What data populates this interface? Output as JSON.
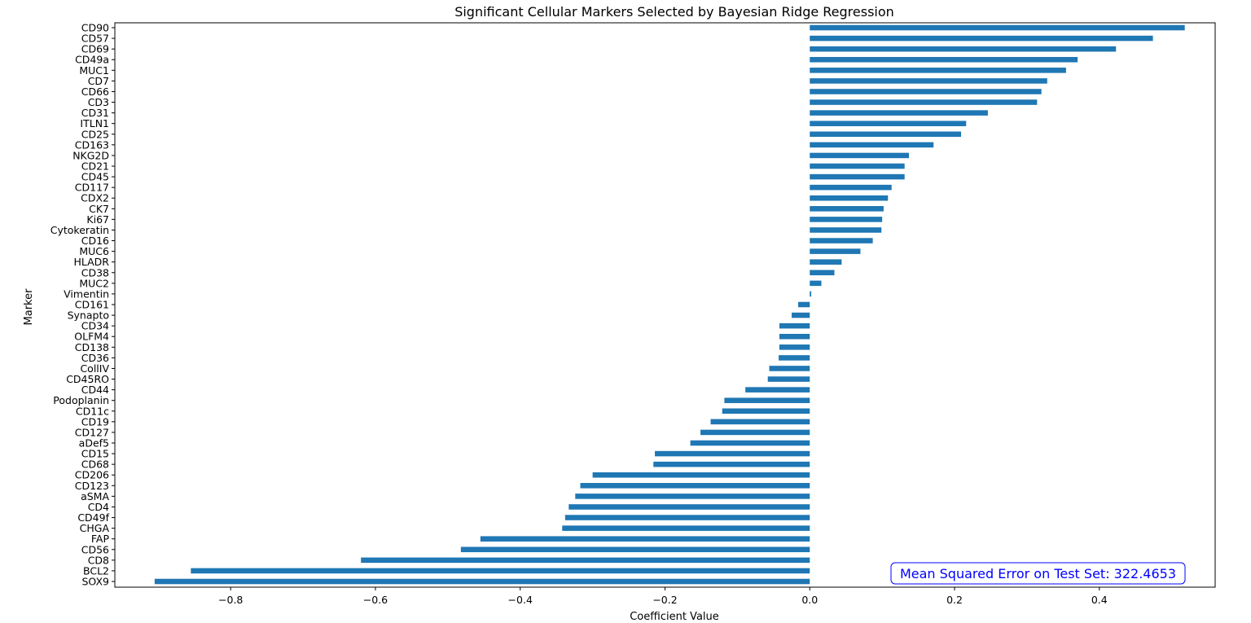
{
  "chart_data": {
    "type": "bar",
    "orientation": "horizontal",
    "title": "Significant Cellular Markers Selected by Bayesian Ridge Regression",
    "xlabel": "Coefficient Value",
    "ylabel": "Marker",
    "xlim": [
      -0.96,
      0.56
    ],
    "xticks": [
      -0.8,
      -0.6,
      -0.4,
      -0.2,
      0.0,
      0.2,
      0.4
    ],
    "xtick_labels": [
      "−0.8",
      "−0.6",
      "−0.4",
      "−0.2",
      "0.0",
      "0.2",
      "0.4"
    ],
    "grid": false,
    "bar_color": "#1f77b4",
    "categories": [
      "CD90",
      "CD57",
      "CD69",
      "CD49a",
      "MUC1",
      "CD7",
      "CD66",
      "CD3",
      "CD31",
      "ITLN1",
      "CD25",
      "CD163",
      "NKG2D",
      "CD21",
      "CD45",
      "CD117",
      "CDX2",
      "CK7",
      "Ki67",
      "Cytokeratin",
      "CD16",
      "MUC6",
      "HLADR",
      "CD38",
      "MUC2",
      "Vimentin",
      "CD161",
      "Synapto",
      "CD34",
      "OLFM4",
      "CD138",
      "CD36",
      "CollIV",
      "CD45RO",
      "CD44",
      "Podoplanin",
      "CD11c",
      "CD19",
      "CD127",
      "aDef5",
      "CD15",
      "CD68",
      "CD206",
      "CD123",
      "aSMA",
      "CD4",
      "CD49f",
      "CHGA",
      "FAP",
      "CD56",
      "CD8",
      "BCL2",
      "SOX9"
    ],
    "values": [
      0.518,
      0.474,
      0.423,
      0.37,
      0.354,
      0.328,
      0.32,
      0.314,
      0.246,
      0.216,
      0.209,
      0.171,
      0.137,
      0.131,
      0.131,
      0.113,
      0.108,
      0.102,
      0.1,
      0.099,
      0.087,
      0.07,
      0.044,
      0.034,
      0.016,
      0.002,
      -0.016,
      -0.025,
      -0.042,
      -0.042,
      -0.042,
      -0.043,
      -0.056,
      -0.058,
      -0.089,
      -0.118,
      -0.121,
      -0.137,
      -0.151,
      -0.165,
      -0.214,
      -0.216,
      -0.3,
      -0.317,
      -0.324,
      -0.333,
      -0.338,
      -0.342,
      -0.455,
      -0.482,
      -0.62,
      -0.855,
      -0.905
    ],
    "annotation": {
      "text": "Mean Squared Error on Test Set: 322.4653",
      "color": "#0000ff",
      "placement": "bottom-right"
    }
  }
}
